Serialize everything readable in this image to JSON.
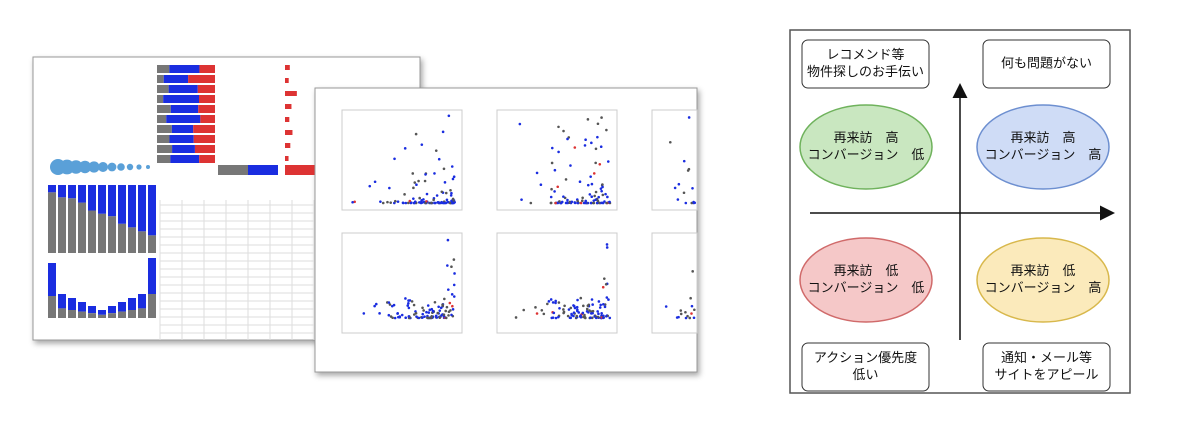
{
  "labels": [
    {
      "lines": [
        "レコメンド等",
        "物件探しのお手伝い"
      ]
    },
    {
      "lines": [
        "何も問題がない"
      ]
    },
    {
      "lines": [
        "アクション優先度",
        "低い"
      ]
    },
    {
      "lines": [
        "通知・メール等",
        "サイトをアピール"
      ]
    }
  ],
  "ellipses": [
    {
      "lines": [
        "再来訪　高",
        "コンバージョン　低"
      ]
    },
    {
      "lines": [
        "再来訪　高",
        "コンバージョン　高"
      ]
    },
    {
      "lines": [
        "再来訪　低",
        "コンバージョン　低"
      ]
    },
    {
      "lines": [
        "再来訪　低",
        "コンバージョン　高"
      ]
    }
  ]
}
